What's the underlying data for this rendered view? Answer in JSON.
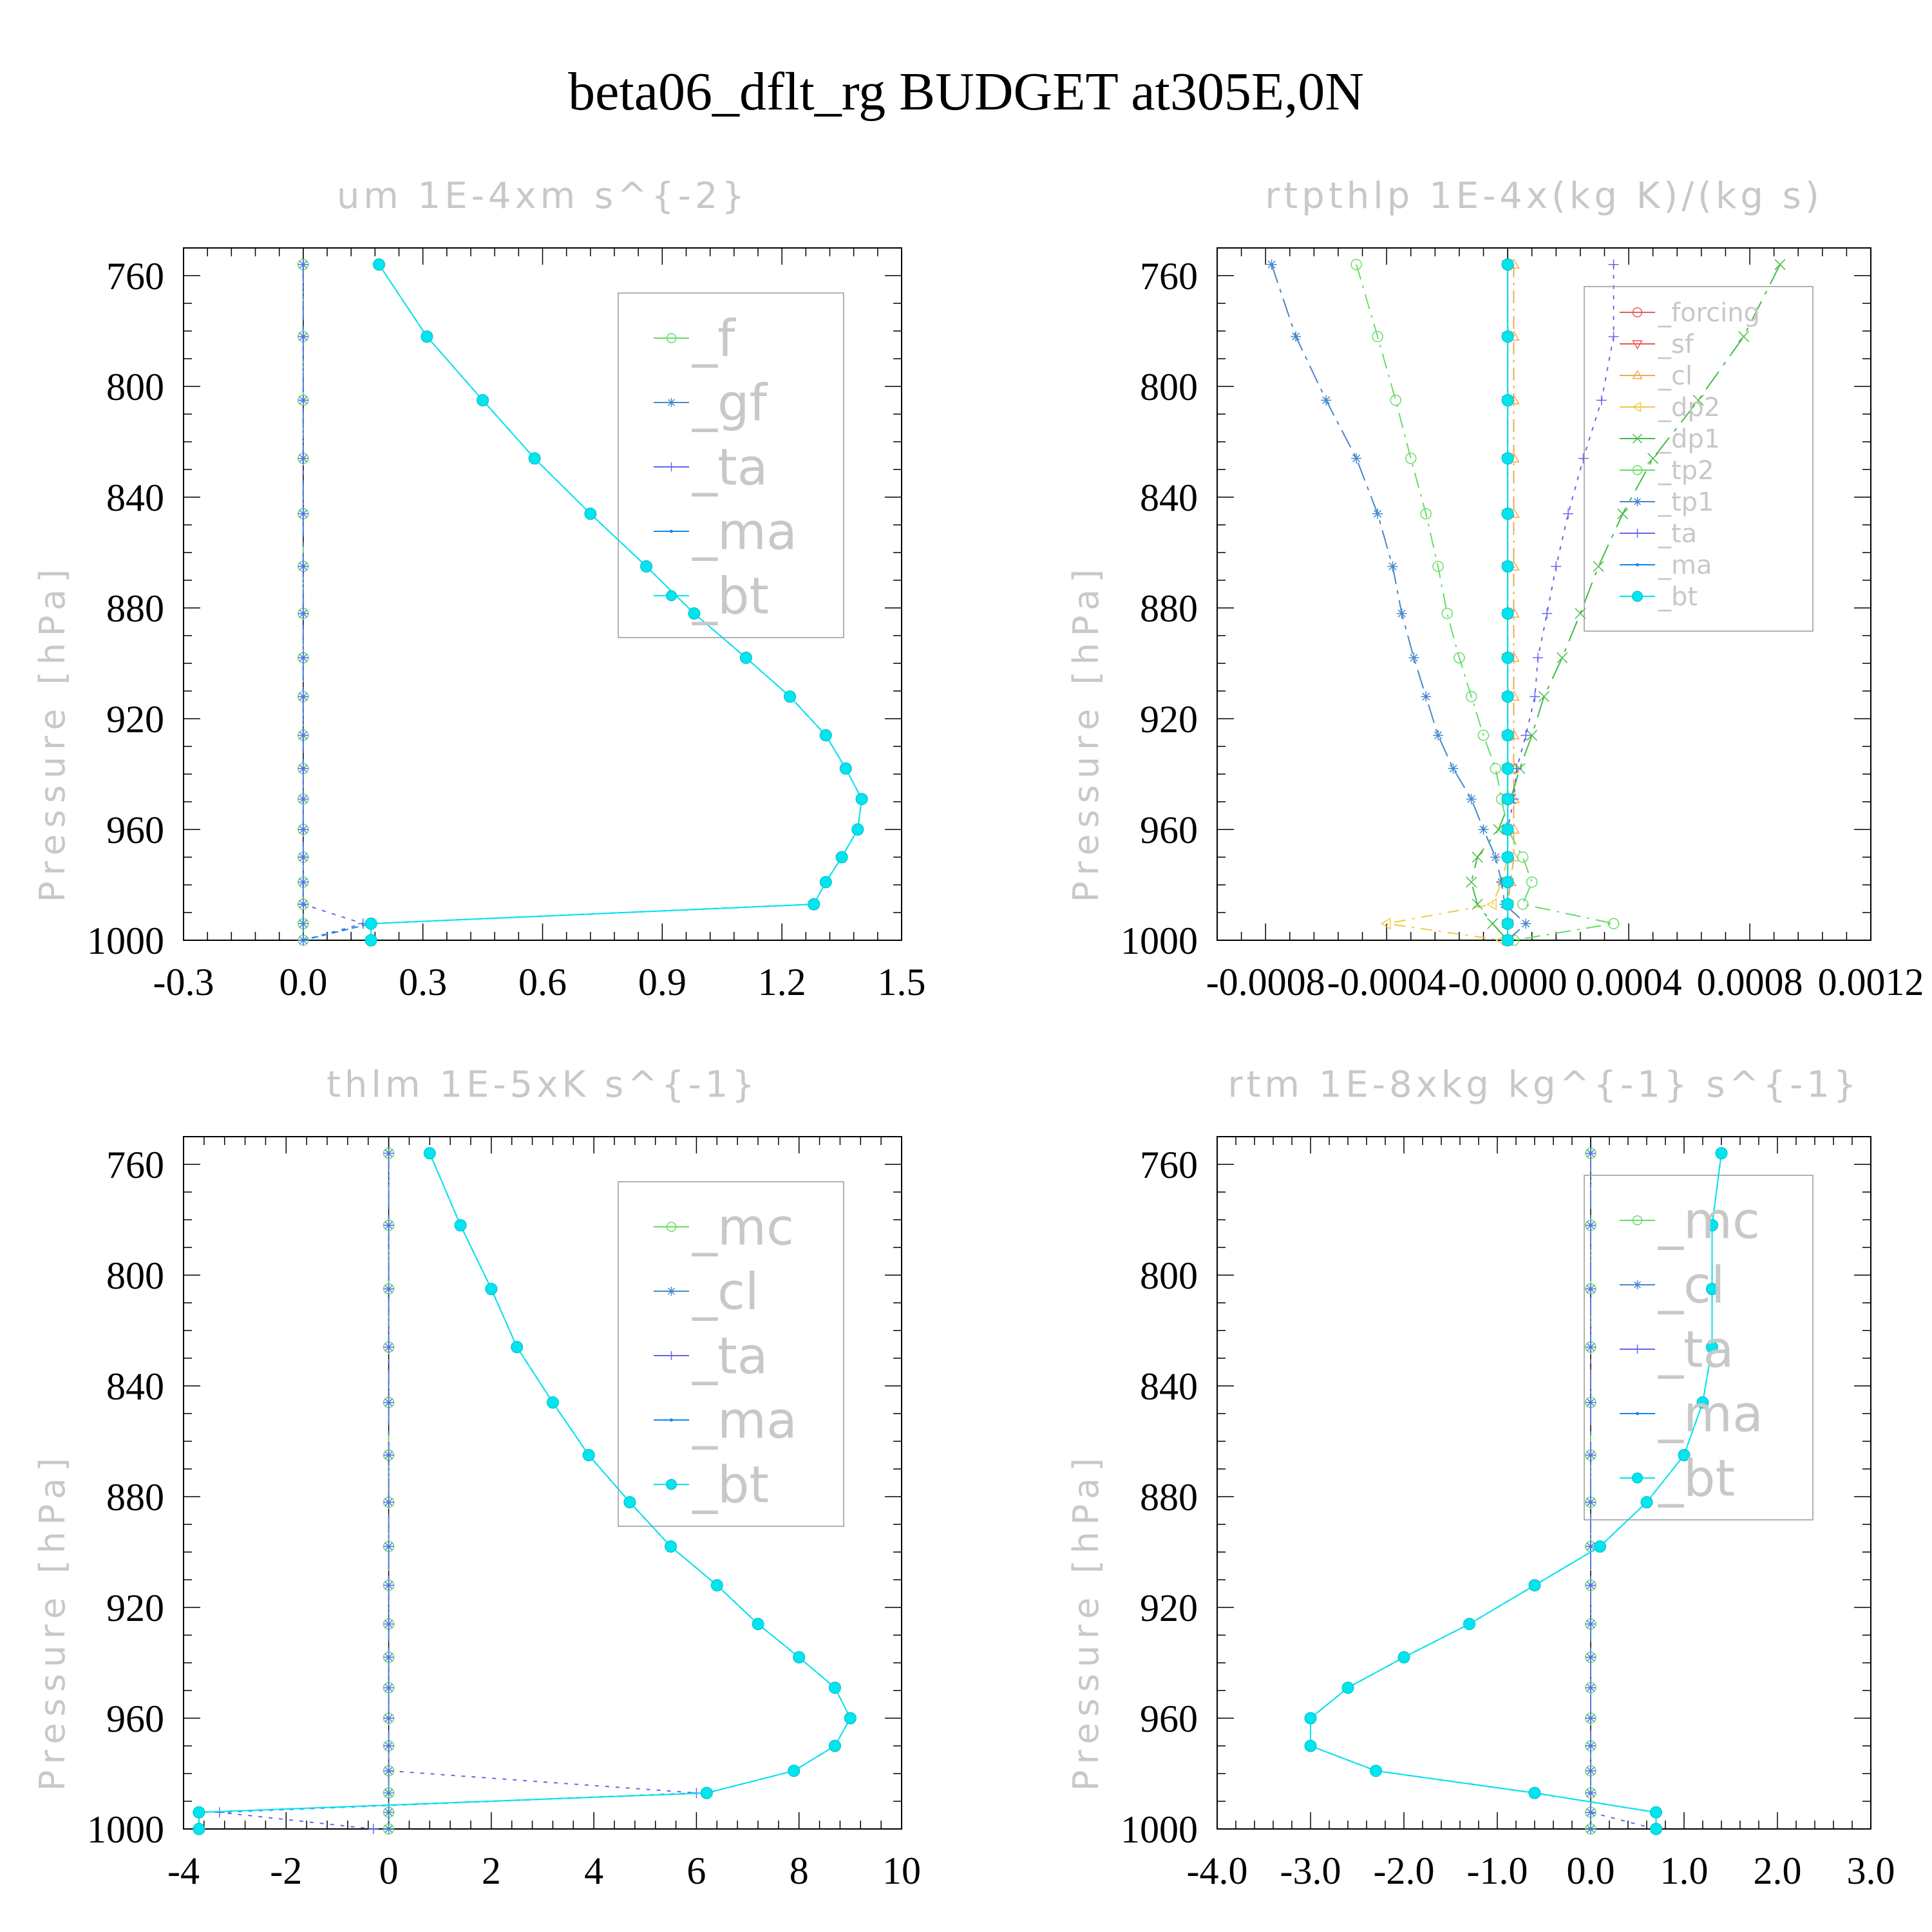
{
  "title": "beta06_dflt_rg  BUDGET at305E,0N",
  "chart_data": [
    {
      "type": "line",
      "title": "um   1E-4xm s^{-2}",
      "ylabel": "Pressure [hPa]",
      "xlim": [
        -0.3,
        1.5
      ],
      "ylim": [
        1000,
        750
      ],
      "xticks": [
        "-0.3",
        "0.0",
        "0.3",
        "0.6",
        "0.9",
        "1.2",
        "1.5"
      ],
      "xtick_values": [
        -0.3,
        0.0,
        0.3,
        0.6,
        0.9,
        1.2,
        1.5
      ],
      "yticks": [
        "760",
        "800",
        "840",
        "880",
        "920",
        "960",
        "1000"
      ],
      "ytick_values": [
        760,
        800,
        840,
        880,
        920,
        960,
        1000
      ],
      "legend_position": "top-right",
      "pressure": [
        756,
        782,
        805,
        826,
        846,
        865,
        882,
        898,
        912,
        926,
        938,
        949,
        960,
        970,
        979,
        987,
        994,
        1000
      ],
      "series": [
        {
          "name": "_f",
          "color": "#66dd66",
          "marker": "circle",
          "values": [
            0,
            0,
            0,
            0,
            0,
            0,
            0,
            0,
            0,
            0,
            0,
            0,
            0,
            0,
            0,
            0,
            0,
            0
          ]
        },
        {
          "name": "_gf",
          "color": "#4488cc",
          "marker": "star",
          "values": [
            0,
            0,
            0,
            0,
            0,
            0,
            0,
            0,
            0,
            0,
            0,
            0,
            0,
            0,
            0,
            0,
            0,
            0
          ]
        },
        {
          "name": "_ta",
          "color": "#6666ee",
          "marker": "plus",
          "values": [
            0,
            0,
            0,
            0,
            0,
            0,
            0,
            0,
            0,
            0,
            0,
            0,
            0,
            0,
            0,
            0,
            0.15,
            0
          ]
        },
        {
          "name": "_ma",
          "color": "#1188ee",
          "marker": "dot",
          "values": [
            0.19,
            0.31,
            0.45,
            0.58,
            0.72,
            0.86,
            0.98,
            1.11,
            1.22,
            1.31,
            1.36,
            1.4,
            1.39,
            1.35,
            1.31,
            1.28,
            0.17,
            0
          ]
        },
        {
          "name": "_bt",
          "color": "#00e5ee",
          "marker": "filled",
          "values": [
            0.19,
            0.31,
            0.45,
            0.58,
            0.72,
            0.86,
            0.98,
            1.11,
            1.22,
            1.31,
            1.36,
            1.4,
            1.39,
            1.35,
            1.31,
            1.28,
            0.17,
            0.17
          ]
        }
      ]
    },
    {
      "type": "line",
      "title": "rtpthlp   1E-4x(kg K)/(kg s)",
      "ylabel": "Pressure [hPa]",
      "xlim": [
        -0.00096,
        0.0012
      ],
      "ylim": [
        1000,
        750
      ],
      "xticks": [
        "-0.0008",
        "-0.0004",
        "-0.0000",
        "0.0004",
        "0.0008",
        "0.0012"
      ],
      "xtick_values": [
        -0.0008,
        -0.0004,
        0.0,
        0.0004,
        0.0008,
        0.0012
      ],
      "yticks": [
        "760",
        "800",
        "840",
        "880",
        "920",
        "960",
        "1000"
      ],
      "ytick_values": [
        760,
        800,
        840,
        880,
        920,
        960,
        1000
      ],
      "legend_position": "top-right",
      "pressure": [
        756,
        782,
        805,
        826,
        846,
        865,
        882,
        898,
        912,
        926,
        938,
        949,
        960,
        970,
        979,
        987,
        994,
        1000
      ],
      "series": [
        {
          "name": "_forcing",
          "color": "#e06060",
          "marker": "circle",
          "values": [
            0,
            0,
            0,
            0,
            0,
            0,
            0,
            0,
            0,
            0,
            0,
            0,
            0,
            0,
            0,
            0,
            0,
            0
          ]
        },
        {
          "name": "_sf",
          "color": "#ee5555",
          "marker": "triangle-down",
          "values": [
            0,
            0,
            0,
            0,
            0,
            0,
            0,
            0,
            0,
            0,
            0,
            0,
            0,
            0,
            0,
            0,
            0,
            0
          ]
        },
        {
          "name": "_cl",
          "color": "#eeaa55",
          "marker": "triangle-up",
          "values": [
            2e-05,
            2e-05,
            2e-05,
            2e-05,
            2e-05,
            2e-05,
            2e-05,
            2e-05,
            2e-05,
            2e-05,
            2e-05,
            2e-05,
            2e-05,
            2e-05,
            1e-05,
            0,
            0,
            0
          ]
        },
        {
          "name": "_dp2",
          "color": "#eecc44",
          "marker": "triangle-left",
          "values": [
            0,
            0,
            0,
            0,
            0,
            0,
            0,
            0,
            0,
            0,
            0,
            0,
            0,
            0,
            -2e-05,
            -5e-05,
            -0.0004,
            -2e-05
          ]
        },
        {
          "name": "_dp1",
          "color": "#44bb44",
          "marker": "x",
          "values": [
            0.0009,
            0.00078,
            0.00063,
            0.00048,
            0.00038,
            0.0003,
            0.00024,
            0.00018,
            0.00012,
            8e-05,
            4e-05,
            1e-05,
            -3e-05,
            -0.0001,
            -0.00012,
            -0.0001,
            -5e-05,
            0
          ]
        },
        {
          "name": "_tp2",
          "color": "#66dd66",
          "marker": "circle",
          "values": [
            -0.0005,
            -0.00043,
            -0.00037,
            -0.00032,
            -0.00027,
            -0.00023,
            -0.0002,
            -0.00016,
            -0.00012,
            -8e-05,
            -4e-05,
            -2e-05,
            0,
            5e-05,
            8e-05,
            5e-05,
            0.00035,
            2e-05
          ]
        },
        {
          "name": "_tp1",
          "color": "#4488cc",
          "marker": "star",
          "values": [
            -0.00078,
            -0.0007,
            -0.0006,
            -0.0005,
            -0.00043,
            -0.00038,
            -0.00035,
            -0.00031,
            -0.00027,
            -0.00023,
            -0.00018,
            -0.00012,
            -8e-05,
            -4e-05,
            -2e-05,
            -1e-05,
            6e-05,
            0
          ]
        },
        {
          "name": "_ta",
          "color": "#6666ee",
          "marker": "plus",
          "values": [
            0.00035,
            0.00035,
            0.00031,
            0.00025,
            0.0002,
            0.00016,
            0.00013,
            0.0001,
            9e-05,
            6e-05,
            3e-05,
            2e-05,
            0,
            0,
            0,
            0,
            0,
            0
          ]
        },
        {
          "name": "_ma",
          "color": "#1188ee",
          "marker": "dot",
          "values": [
            0,
            0,
            0,
            0,
            0,
            0,
            0,
            0,
            0,
            0,
            0,
            0,
            0,
            0,
            0,
            0,
            0,
            0
          ]
        },
        {
          "name": "_bt",
          "color": "#00e5ee",
          "marker": "filled",
          "values": [
            0,
            0,
            0,
            0,
            0,
            0,
            0,
            0,
            0,
            0,
            0,
            0,
            0,
            0,
            0,
            0,
            0,
            0
          ]
        }
      ]
    },
    {
      "type": "line",
      "title": "thlm   1E-5xK s^{-1}",
      "ylabel": "Pressure [hPa]",
      "xlim": [
        -4,
        10
      ],
      "ylim": [
        1000,
        750
      ],
      "xticks": [
        "-4",
        "-2",
        "0",
        "2",
        "4",
        "6",
        "8",
        "10"
      ],
      "xtick_values": [
        -4,
        -2,
        0,
        2,
        4,
        6,
        8,
        10
      ],
      "yticks": [
        "760",
        "800",
        "840",
        "880",
        "920",
        "960",
        "1000"
      ],
      "ytick_values": [
        760,
        800,
        840,
        880,
        920,
        960,
        1000
      ],
      "legend_position": "top-right",
      "pressure": [
        756,
        782,
        805,
        826,
        846,
        865,
        882,
        898,
        912,
        926,
        938,
        949,
        960,
        970,
        979,
        987,
        994,
        1000
      ],
      "series": [
        {
          "name": "_mc",
          "color": "#66dd66",
          "marker": "circle",
          "values": [
            0,
            0,
            0,
            0,
            0,
            0,
            0,
            0,
            0,
            0,
            0,
            0,
            0,
            0,
            0,
            0,
            0,
            0
          ]
        },
        {
          "name": "_cl",
          "color": "#4488cc",
          "marker": "star",
          "values": [
            0,
            0,
            0,
            0,
            0,
            0,
            0,
            0,
            0,
            0,
            0,
            0,
            0,
            0,
            0,
            0,
            0,
            0
          ]
        },
        {
          "name": "_ta",
          "color": "#6666ee",
          "marker": "plus",
          "values": [
            0,
            0,
            0,
            0,
            0,
            0,
            0,
            0,
            0,
            0,
            0,
            0,
            0,
            0,
            0,
            6.0,
            -3.3,
            -0.3
          ]
        },
        {
          "name": "_ma",
          "color": "#1188ee",
          "marker": "dot",
          "values": [
            0.8,
            1.4,
            2.0,
            2.5,
            3.2,
            3.9,
            4.7,
            5.5,
            6.4,
            7.2,
            8.0,
            8.7,
            9.0,
            8.7,
            7.9,
            6.2,
            -3.7,
            -3.7
          ]
        },
        {
          "name": "_bt",
          "color": "#00e5ee",
          "marker": "filled",
          "values": [
            0.8,
            1.4,
            2.0,
            2.5,
            3.2,
            3.9,
            4.7,
            5.5,
            6.4,
            7.2,
            8.0,
            8.7,
            9.0,
            8.7,
            7.9,
            6.2,
            -3.7,
            -3.7
          ]
        }
      ]
    },
    {
      "type": "line",
      "title": "rtm   1E-8xkg kg^{-1} s^{-1}",
      "ylabel": "Pressure [hPa]",
      "xlim": [
        -4.0,
        3.0
      ],
      "ylim": [
        1000,
        750
      ],
      "xticks": [
        "-4.0",
        "-3.0",
        "-2.0",
        "-1.0",
        "0.0",
        "1.0",
        "2.0",
        "3.0"
      ],
      "xtick_values": [
        -4.0,
        -3.0,
        -2.0,
        -1.0,
        0.0,
        1.0,
        2.0,
        3.0
      ],
      "yticks": [
        "760",
        "800",
        "840",
        "880",
        "920",
        "960",
        "1000"
      ],
      "ytick_values": [
        760,
        800,
        840,
        880,
        920,
        960,
        1000
      ],
      "legend_position": "top-right",
      "pressure": [
        756,
        782,
        805,
        826,
        846,
        865,
        882,
        898,
        912,
        926,
        938,
        949,
        960,
        970,
        979,
        987,
        994,
        1000
      ],
      "series": [
        {
          "name": "_mc",
          "color": "#66dd66",
          "marker": "circle",
          "values": [
            0,
            0,
            0,
            0,
            0,
            0,
            0,
            0,
            0,
            0,
            0,
            0,
            0,
            0,
            0,
            0,
            0,
            0
          ]
        },
        {
          "name": "_cl",
          "color": "#4488cc",
          "marker": "star",
          "values": [
            0,
            0,
            0,
            0,
            0,
            0,
            0,
            0,
            0,
            0,
            0,
            0,
            0,
            0,
            0,
            0,
            0,
            0
          ]
        },
        {
          "name": "_ta",
          "color": "#6666ee",
          "marker": "plus",
          "values": [
            0,
            0,
            0,
            0,
            0,
            0,
            0,
            0,
            0,
            0,
            0,
            0,
            0,
            0,
            0,
            0,
            0,
            0.7
          ]
        },
        {
          "name": "_ma",
          "color": "#1188ee",
          "marker": "dot",
          "values": [
            1.4,
            1.3,
            1.3,
            1.3,
            1.2,
            1.0,
            0.6,
            0.1,
            -0.6,
            -1.3,
            -2.0,
            -2.6,
            -3.0,
            -3.0,
            -2.3,
            -0.6,
            0.7,
            0.7
          ]
        },
        {
          "name": "_bt",
          "color": "#00e5ee",
          "marker": "filled",
          "values": [
            1.4,
            1.3,
            1.3,
            1.3,
            1.2,
            1.0,
            0.6,
            0.1,
            -0.6,
            -1.3,
            -2.0,
            -2.6,
            -3.0,
            -3.0,
            -2.3,
            -0.6,
            0.7,
            0.7
          ]
        }
      ]
    }
  ]
}
